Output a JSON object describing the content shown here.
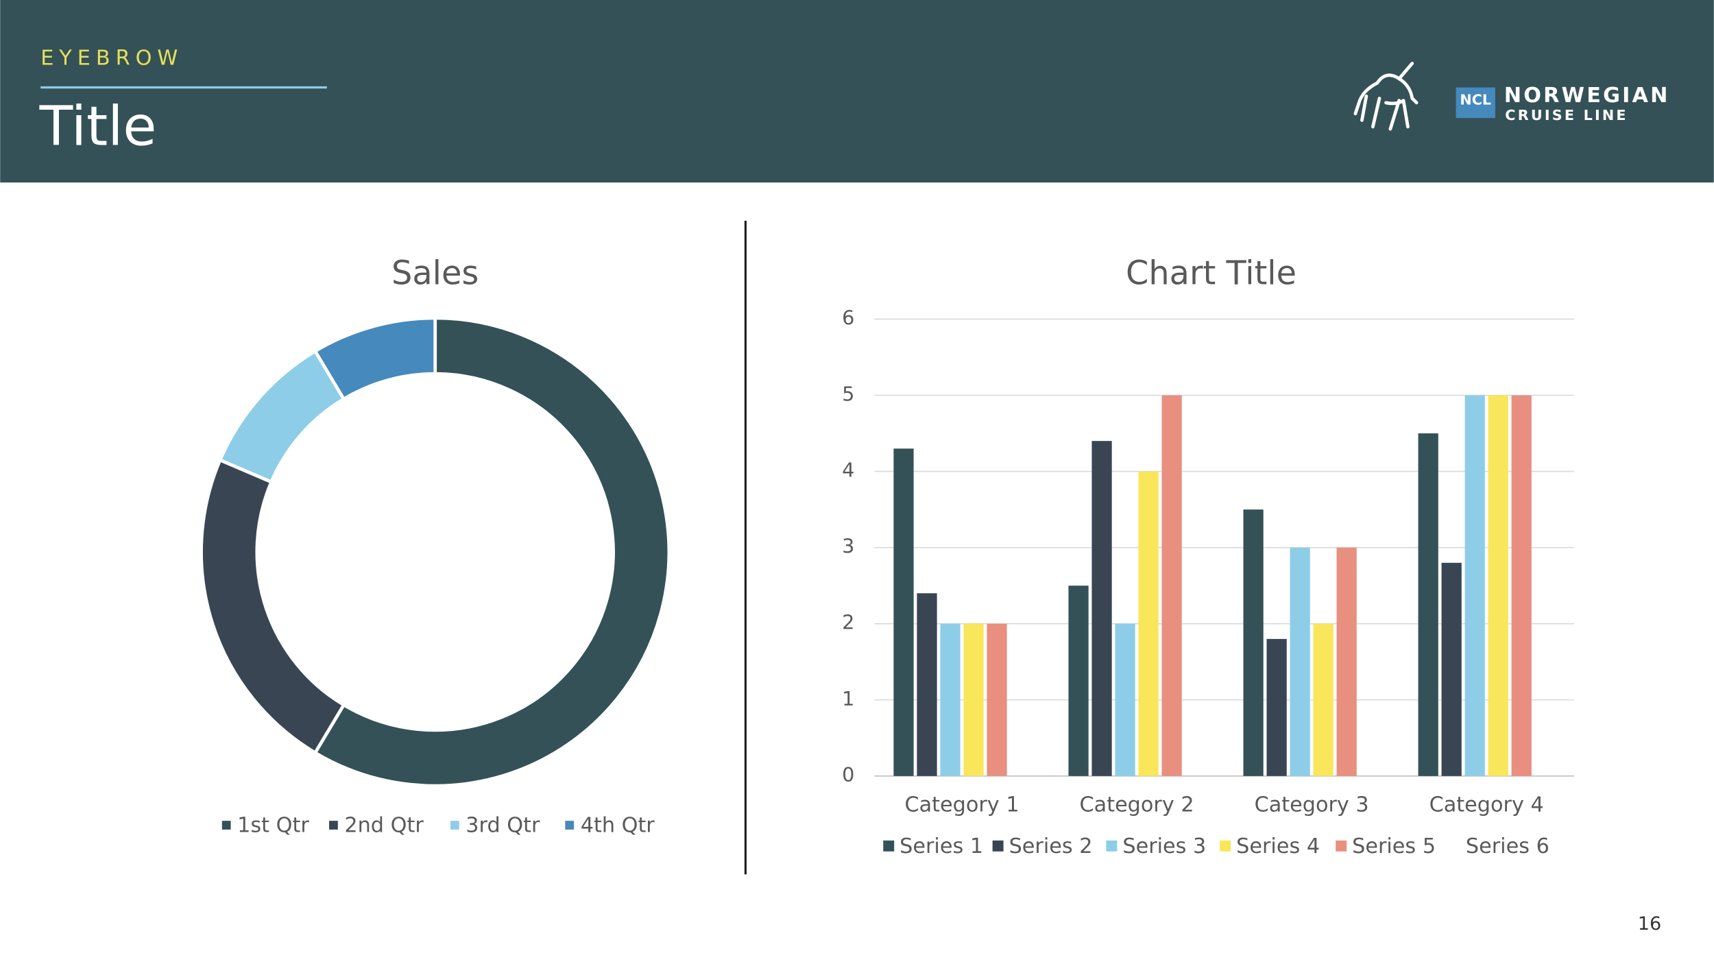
{
  "header": {
    "eyebrow": "EYEBROW",
    "title": "Title",
    "logo_mark": "NCL",
    "logo_line1": "NORWEGIAN",
    "logo_line2": "CRUISE LINE"
  },
  "page_number": "16",
  "chart_data": [
    {
      "type": "donut",
      "title": "Sales",
      "categories": [
        "1st Qtr",
        "2nd Qtr",
        "3rd Qtr",
        "4th Qtr"
      ],
      "values": [
        8.2,
        3.2,
        1.4,
        1.2
      ],
      "colors": [
        "#345157",
        "#394553",
        "#8ecde8",
        "#4589bd"
      ]
    },
    {
      "type": "bar",
      "title": "Chart Title",
      "categories": [
        "Category 1",
        "Category 2",
        "Category 3",
        "Category 4"
      ],
      "series": [
        {
          "name": "Series 1",
          "color": "#345157",
          "values": [
            4.3,
            2.5,
            3.5,
            4.5
          ]
        },
        {
          "name": "Series 2",
          "color": "#394553",
          "values": [
            2.4,
            4.4,
            1.8,
            2.8
          ]
        },
        {
          "name": "Series 3",
          "color": "#8ecde8",
          "values": [
            2,
            2,
            3,
            5
          ]
        },
        {
          "name": "Series 4",
          "color": "#f9e65a",
          "values": [
            2,
            4,
            2,
            5
          ]
        },
        {
          "name": "Series 5",
          "color": "#e88f80",
          "values": [
            2,
            5,
            3,
            5
          ]
        },
        {
          "name": "Series 6",
          "values": [
            null,
            null,
            null,
            null
          ]
        }
      ],
      "ylim": [
        0,
        6
      ],
      "yticks": [
        0,
        1,
        2,
        3,
        4,
        5,
        6
      ],
      "grid": true
    }
  ]
}
